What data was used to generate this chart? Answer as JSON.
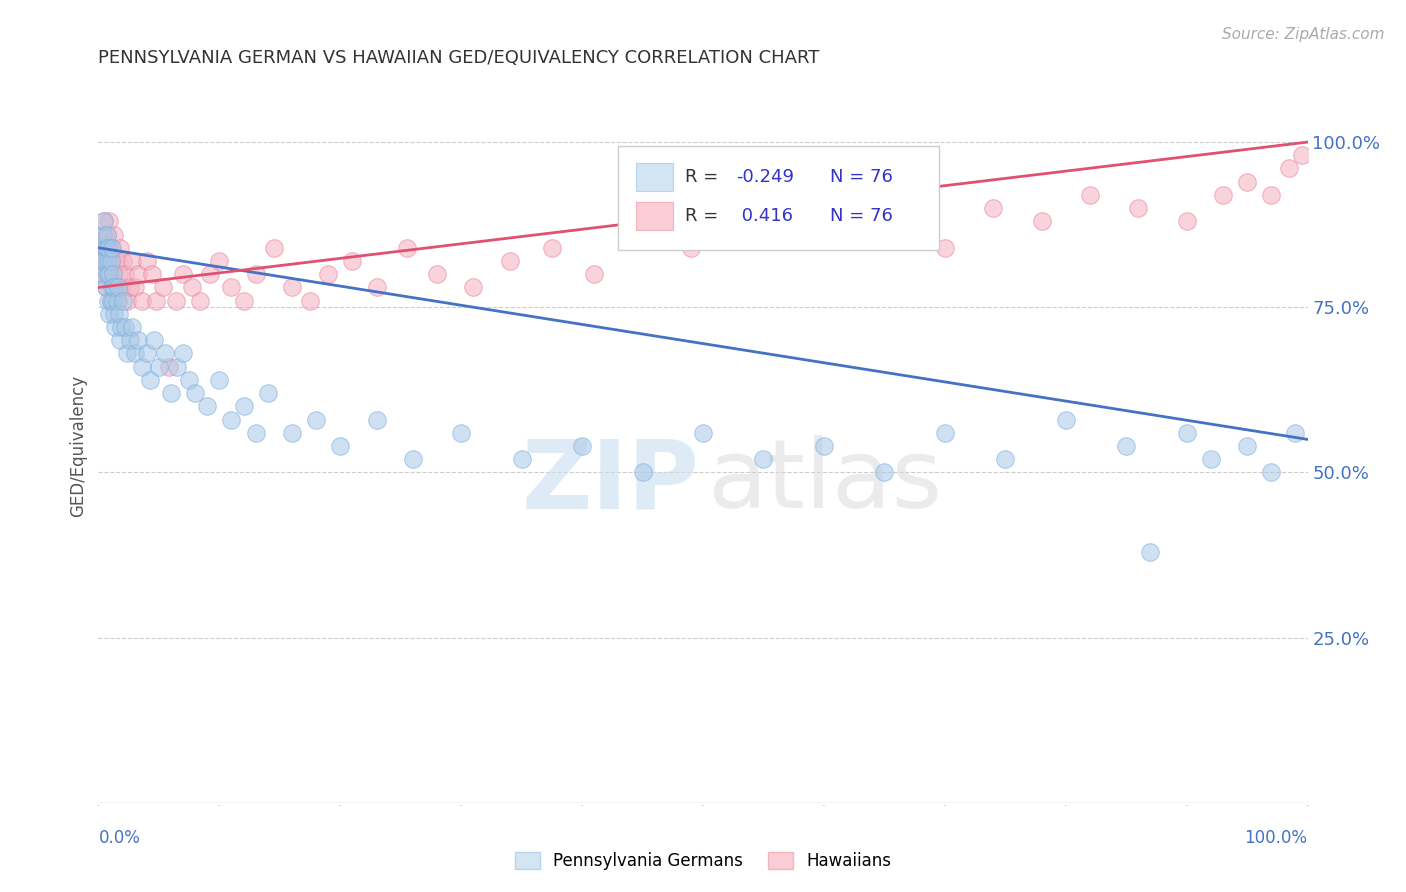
{
  "title": "PENNSYLVANIA GERMAN VS HAWAIIAN GED/EQUIVALENCY CORRELATION CHART",
  "source_text": "Source: ZipAtlas.com",
  "ylabel": "GED/Equivalency",
  "yaxis_ticks": [
    0.25,
    0.5,
    0.75,
    1.0
  ],
  "yaxis_labels": [
    "25.0%",
    "50.0%",
    "75.0%",
    "100.0%"
  ],
  "blue_r": -0.249,
  "pink_r": 0.416,
  "n": 76,
  "blue_color": "#a8c8e8",
  "pink_color": "#f4b0c0",
  "blue_edge_color": "#7aaedc",
  "pink_edge_color": "#e880a0",
  "blue_line_color": "#4472c4",
  "pink_line_color": "#e05070",
  "legend_blue_fill": "#c8dff0",
  "legend_pink_fill": "#f8c0cc",
  "blue_x": [
    0.002,
    0.003,
    0.004,
    0.004,
    0.005,
    0.005,
    0.006,
    0.006,
    0.007,
    0.007,
    0.008,
    0.008,
    0.008,
    0.009,
    0.009,
    0.01,
    0.01,
    0.011,
    0.011,
    0.012,
    0.012,
    0.013,
    0.013,
    0.014,
    0.015,
    0.016,
    0.017,
    0.018,
    0.019,
    0.02,
    0.022,
    0.024,
    0.026,
    0.028,
    0.03,
    0.033,
    0.036,
    0.04,
    0.043,
    0.046,
    0.05,
    0.055,
    0.06,
    0.065,
    0.07,
    0.075,
    0.08,
    0.09,
    0.1,
    0.11,
    0.12,
    0.13,
    0.14,
    0.16,
    0.18,
    0.2,
    0.23,
    0.26,
    0.3,
    0.35,
    0.4,
    0.45,
    0.5,
    0.55,
    0.6,
    0.65,
    0.7,
    0.75,
    0.8,
    0.85,
    0.87,
    0.9,
    0.92,
    0.95,
    0.97,
    0.99
  ],
  "blue_y": [
    0.84,
    0.82,
    0.86,
    0.8,
    0.88,
    0.82,
    0.84,
    0.78,
    0.86,
    0.8,
    0.82,
    0.76,
    0.84,
    0.8,
    0.74,
    0.82,
    0.76,
    0.78,
    0.84,
    0.76,
    0.8,
    0.74,
    0.78,
    0.72,
    0.76,
    0.78,
    0.74,
    0.7,
    0.72,
    0.76,
    0.72,
    0.68,
    0.7,
    0.72,
    0.68,
    0.7,
    0.66,
    0.68,
    0.64,
    0.7,
    0.66,
    0.68,
    0.62,
    0.66,
    0.68,
    0.64,
    0.62,
    0.6,
    0.64,
    0.58,
    0.6,
    0.56,
    0.62,
    0.56,
    0.58,
    0.54,
    0.58,
    0.52,
    0.56,
    0.52,
    0.54,
    0.5,
    0.56,
    0.52,
    0.54,
    0.5,
    0.56,
    0.52,
    0.58,
    0.54,
    0.38,
    0.56,
    0.52,
    0.54,
    0.5,
    0.56
  ],
  "pink_x": [
    0.002,
    0.003,
    0.004,
    0.004,
    0.005,
    0.005,
    0.006,
    0.006,
    0.007,
    0.007,
    0.008,
    0.008,
    0.009,
    0.009,
    0.01,
    0.01,
    0.011,
    0.012,
    0.013,
    0.014,
    0.015,
    0.016,
    0.017,
    0.018,
    0.019,
    0.02,
    0.022,
    0.024,
    0.026,
    0.028,
    0.03,
    0.033,
    0.036,
    0.04,
    0.044,
    0.048,
    0.053,
    0.058,
    0.064,
    0.07,
    0.077,
    0.084,
    0.092,
    0.1,
    0.11,
    0.12,
    0.13,
    0.145,
    0.16,
    0.175,
    0.19,
    0.21,
    0.23,
    0.255,
    0.28,
    0.31,
    0.34,
    0.375,
    0.41,
    0.45,
    0.49,
    0.53,
    0.57,
    0.61,
    0.65,
    0.7,
    0.74,
    0.78,
    0.82,
    0.86,
    0.9,
    0.93,
    0.95,
    0.97,
    0.985,
    0.995
  ],
  "pink_y": [
    0.82,
    0.86,
    0.8,
    0.84,
    0.88,
    0.82,
    0.84,
    0.78,
    0.86,
    0.82,
    0.8,
    0.84,
    0.88,
    0.8,
    0.84,
    0.76,
    0.82,
    0.8,
    0.86,
    0.78,
    0.82,
    0.76,
    0.8,
    0.84,
    0.78,
    0.82,
    0.8,
    0.76,
    0.78,
    0.82,
    0.78,
    0.8,
    0.76,
    0.82,
    0.8,
    0.76,
    0.78,
    0.66,
    0.76,
    0.8,
    0.78,
    0.76,
    0.8,
    0.82,
    0.78,
    0.76,
    0.8,
    0.84,
    0.78,
    0.76,
    0.8,
    0.82,
    0.78,
    0.84,
    0.8,
    0.78,
    0.82,
    0.84,
    0.8,
    0.86,
    0.84,
    0.88,
    0.86,
    0.9,
    0.88,
    0.84,
    0.9,
    0.88,
    0.92,
    0.9,
    0.88,
    0.92,
    0.94,
    0.92,
    0.96,
    0.98
  ]
}
